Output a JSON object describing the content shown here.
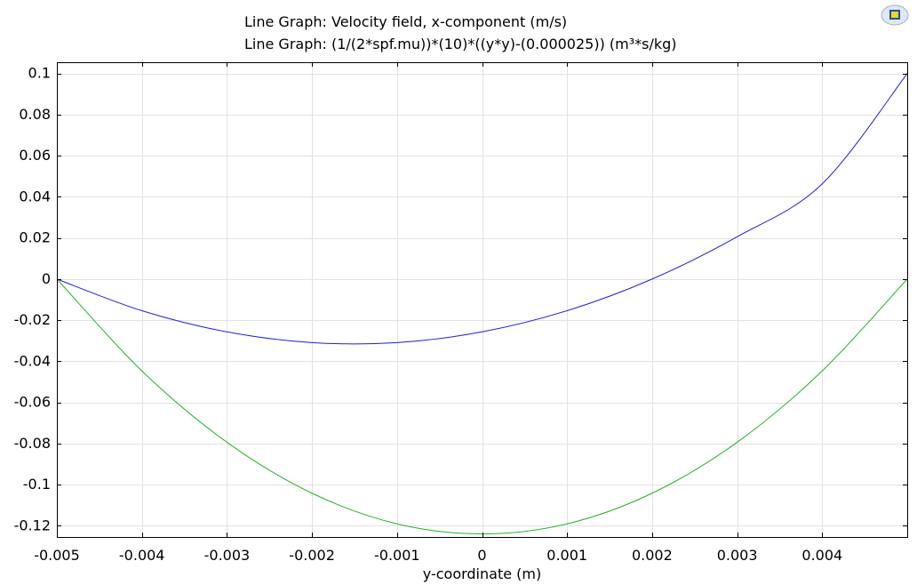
{
  "chart_data": {
    "type": "line",
    "title_lines": [
      "Line Graph: Velocity field, x-component (m/s)",
      "Line Graph: (1/(2*spf.mu))*(10)*((y*y)-(0.000025)) (m³*s/kg)"
    ],
    "xlabel": "y-coordinate (m)",
    "ylabel": "",
    "xlim": [
      -0.005,
      0.005
    ],
    "ylim": [
      -0.1255,
      0.1055
    ],
    "grid": true,
    "legend": "none",
    "x_ticks": [
      -0.005,
      -0.004,
      -0.003,
      -0.002,
      -0.001,
      0,
      0.001,
      0.002,
      0.003,
      0.004
    ],
    "x_tick_labels": [
      "-0.005",
      "-0.004",
      "-0.003",
      "-0.002",
      "-0.001",
      "0",
      "0.001",
      "0.002",
      "0.003",
      "0.004"
    ],
    "y_ticks": [
      0.1,
      0.08,
      0.06,
      0.04,
      0.02,
      0,
      -0.02,
      -0.04,
      -0.06,
      -0.08,
      -0.1,
      -0.12
    ],
    "y_tick_labels": [
      "0.1",
      "0.08",
      "0.06",
      "0.04",
      "0.02",
      "0",
      "-0.02",
      "-0.04",
      "-0.06",
      "-0.08",
      "-0.1",
      "-0.12"
    ],
    "series": [
      {
        "color": "#1f1fe0",
        "x": [
          -0.005,
          -0.004,
          -0.003,
          -0.002,
          -0.001,
          0,
          0.001,
          0.002,
          0.003,
          0.004,
          0.005
        ],
        "y": [
          0,
          -0.0154,
          -0.0257,
          -0.0309,
          -0.0309,
          -0.0257,
          -0.0154,
          0.0,
          0.0206,
          0.0463,
          0.1
        ]
      },
      {
        "color": "#22b422",
        "x": [
          -0.005,
          -0.004,
          -0.003,
          -0.002,
          -0.001,
          0,
          0.001,
          0.002,
          0.003,
          0.004,
          0.005
        ],
        "y": [
          0,
          -0.0447,
          -0.0794,
          -0.1042,
          -0.1191,
          -0.124,
          -0.1191,
          -0.1042,
          -0.0794,
          -0.0447,
          0
        ]
      }
    ],
    "colors": {
      "grid": "#e2e2e2",
      "axis": "#000000",
      "background": "#ffffff"
    },
    "icons": {
      "logo": "comsol-logo-icon"
    }
  }
}
